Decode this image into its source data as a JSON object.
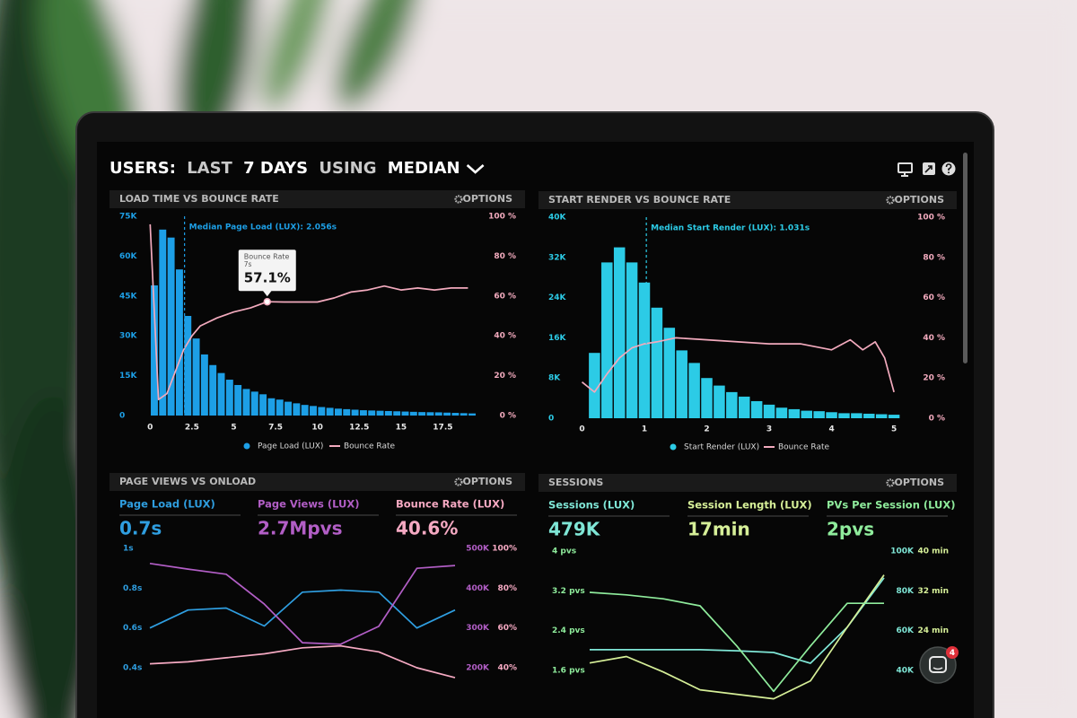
{
  "header": {
    "title": [
      "USERS:",
      "LAST",
      "7 DAYS",
      "USING",
      "MEDIAN"
    ]
  },
  "chat_badge": 4,
  "chart_data": [
    {
      "type": "histogram",
      "title": "LOAD TIME VS BOUNCE RATE",
      "options": "OPTIONS",
      "legend": "bottom",
      "xlim": [
        -0.5,
        20
      ],
      "xticks": [
        0,
        2.5,
        5,
        7.5,
        10,
        12.5,
        15,
        17.5
      ],
      "ylim": [
        0,
        75000
      ],
      "yticks": [
        {
          "value": 75000,
          "label": "75K"
        },
        {
          "value": 60000,
          "label": "60K"
        },
        {
          "value": 45000,
          "label": "45K"
        },
        {
          "value": 30000,
          "label": "30K"
        },
        {
          "value": 15000,
          "label": "15K"
        },
        0
      ],
      "y2lim": [
        0,
        100
      ],
      "y2ticks": [
        {
          "value": 100,
          "label": "100 %"
        },
        {
          "value": 80,
          "label": "80 %"
        },
        {
          "value": 60,
          "label": "60 %"
        },
        {
          "value": 40,
          "label": "40 %"
        },
        {
          "value": 20,
          "label": "20 %"
        },
        {
          "value": 0,
          "label": "0 %"
        }
      ],
      "series": [
        {
          "name": "Page Load (LUX)",
          "color": "#1d9fe6",
          "bins": [
            0,
            0.5,
            1,
            1.5,
            2,
            2.5,
            3,
            3.5,
            4,
            4.5,
            5,
            5.5,
            6,
            6.5,
            7,
            7.5,
            8,
            8.5,
            9,
            9.5,
            10,
            10.5,
            11,
            11.5,
            12,
            12.5,
            13,
            13.5,
            14,
            14.5,
            15,
            15.5,
            16,
            16.5,
            17,
            17.5,
            18,
            18.5,
            19,
            19.5
          ],
          "values": [
            49000,
            70000,
            67000,
            55000,
            37500,
            29000,
            23000,
            19000,
            16000,
            13500,
            11500,
            10000,
            9000,
            8000,
            6500,
            6000,
            5200,
            4600,
            4000,
            3600,
            3200,
            2900,
            2600,
            2400,
            2200,
            2000,
            1900,
            1800,
            1700,
            1600,
            1500,
            1400,
            1300,
            1250,
            1200,
            1100,
            1000,
            900,
            800
          ]
        },
        {
          "name": "Bounce Rate",
          "color": "#f2aabd",
          "axis": "y2",
          "x": [
            0,
            0.5,
            1,
            1.5,
            2,
            2.5,
            3,
            4,
            5,
            6,
            7,
            8,
            9,
            10,
            11,
            12,
            13,
            14,
            15,
            16,
            17,
            18,
            19
          ],
          "values": [
            96,
            8,
            11,
            22,
            33,
            40,
            45,
            49,
            52,
            54,
            57.1,
            57,
            57,
            57,
            59,
            62,
            63,
            65,
            63,
            64,
            63,
            64,
            64
          ]
        }
      ],
      "annotations": [
        {
          "x": 2.056,
          "text": "Median Page Load (LUX): 2.056s"
        }
      ],
      "tooltip": {
        "title": "Bounce Rate",
        "x": 7,
        "x_label": "7s",
        "value": 57.1,
        "label": "57.1%"
      }
    },
    {
      "type": "histogram",
      "title": "START RENDER VS BOUNCE RATE",
      "options": "OPTIONS",
      "legend": "bottom",
      "xlim": [
        -0.05,
        5.2
      ],
      "xticks": [
        0,
        1,
        2,
        3,
        4,
        5
      ],
      "ylim": [
        0,
        40000
      ],
      "yticks": [
        {
          "value": 40000,
          "label": "40K"
        },
        {
          "value": 32000,
          "label": "32K"
        },
        {
          "value": 24000,
          "label": "24K"
        },
        {
          "value": 16000,
          "label": "16K"
        },
        {
          "value": 8000,
          "label": "8K"
        },
        0
      ],
      "y2lim": [
        0,
        100
      ],
      "y2ticks": [
        {
          "value": 100,
          "label": "100 %"
        },
        {
          "value": 80,
          "label": "80 %"
        },
        {
          "value": 60,
          "label": "60 %"
        },
        {
          "value": 40,
          "label": "40 %"
        },
        {
          "value": 20,
          "label": "20 %"
        },
        {
          "value": 0,
          "label": "0 %"
        }
      ],
      "series": [
        {
          "name": "Start Render (LUX)",
          "color": "#2ccbe6",
          "bins": [
            0.1,
            0.3,
            0.5,
            0.7,
            0.9,
            1.1,
            1.3,
            1.5,
            1.7,
            1.9,
            2.1,
            2.3,
            2.5,
            2.7,
            2.9,
            3.1,
            3.3,
            3.5,
            3.7,
            3.9,
            4.1,
            4.3,
            4.5,
            4.7,
            4.9,
            5.1
          ],
          "values": [
            13000,
            31000,
            34000,
            31000,
            27000,
            22000,
            18000,
            13500,
            11000,
            8000,
            6500,
            5200,
            4300,
            3400,
            2700,
            2100,
            1800,
            1500,
            1400,
            1200,
            1000,
            1000,
            900,
            800,
            700
          ]
        },
        {
          "name": "Bounce Rate",
          "color": "#f2aabd",
          "axis": "y2",
          "x": [
            0,
            0.2,
            0.4,
            0.6,
            0.8,
            1,
            1.2,
            1.5,
            2,
            2.5,
            3,
            3.5,
            4,
            4.3,
            4.5,
            4.7,
            4.85,
            5
          ],
          "values": [
            18,
            13,
            22,
            30,
            35,
            37,
            38,
            40,
            39,
            38,
            37,
            37,
            34,
            39,
            34,
            38,
            30,
            13
          ]
        }
      ],
      "annotations": [
        {
          "x": 1.031,
          "text": "Median Start Render (LUX): 1.031s"
        }
      ]
    },
    {
      "type": "line",
      "title": "PAGE VIEWS VS ONLOAD",
      "options": "OPTIONS",
      "categories": [
        null,
        null,
        null,
        null,
        null,
        null,
        null,
        null,
        null
      ],
      "ylim": [
        0.4,
        1
      ],
      "yticks": [
        {
          "value": 1,
          "label": "1s"
        },
        {
          "value": 0.8,
          "label": "0.8s"
        },
        {
          "value": 0.6,
          "label": "0.6s"
        },
        {
          "value": 0.4,
          "label": "0.4s"
        }
      ],
      "y2lim": [
        200000,
        500000
      ],
      "y2ticks": [
        {
          "value": 500000,
          "label": "500K"
        },
        {
          "value": 400000,
          "label": "400K"
        },
        {
          "value": 300000,
          "label": "300K"
        },
        {
          "value": 200000,
          "label": "200K"
        }
      ],
      "y3lim": [
        40,
        100
      ],
      "y3ticks": [
        {
          "value": 100,
          "label": "100%"
        },
        {
          "value": 80,
          "label": "80%"
        },
        {
          "value": 60,
          "label": "60%"
        },
        {
          "value": 40,
          "label": "40%"
        }
      ],
      "series": [
        {
          "name": "Page Load (LUX)",
          "summary": "0.7s",
          "color": "#2f9ee0",
          "values": [
            0.6,
            0.69,
            0.7,
            0.61,
            0.78,
            0.79,
            0.78,
            0.6,
            0.69
          ]
        },
        {
          "name": "Page Views (LUX)",
          "summary": "2.7Mpvs",
          "color": "#b25ec6",
          "axis": "y2",
          "values": [
            462000,
            448000,
            435000,
            360000,
            263000,
            259000,
            304000,
            450000,
            457000
          ]
        },
        {
          "name": "Bounce Rate (LUX)",
          "summary": "40.6%",
          "color": "#f5a9c2",
          "axis": "y3",
          "values": [
            42,
            43,
            45,
            47,
            50,
            51,
            48,
            40,
            35
          ]
        }
      ]
    },
    {
      "type": "line",
      "title": "SESSIONS",
      "options": "OPTIONS",
      "categories": [
        null,
        null,
        null,
        null,
        null,
        null,
        null,
        null,
        null
      ],
      "ylim": [
        1.6,
        4
      ],
      "yticks": [
        {
          "value": 4,
          "label": "4 pvs"
        },
        {
          "value": 3.2,
          "label": "3.2 pvs"
        },
        {
          "value": 2.4,
          "label": "2.4 pvs"
        },
        {
          "value": 1.6,
          "label": "1.6 pvs"
        }
      ],
      "y2lim": [
        40000,
        100000
      ],
      "y2ticks": [
        {
          "value": 100000,
          "label": "100K"
        },
        {
          "value": 80000,
          "label": "80K"
        },
        {
          "value": 60000,
          "label": "60K"
        },
        {
          "value": 40000,
          "label": "40K"
        }
      ],
      "y3lim": [
        16,
        40
      ],
      "y3ticks": [
        {
          "value": 40,
          "label": "40 min"
        },
        {
          "value": 32,
          "label": "32 min"
        },
        {
          "value": 24,
          "label": "24 min"
        }
      ],
      "series": [
        {
          "name": "Sessions (LUX)",
          "summary": "479K",
          "color": "#7fe6d6",
          "axis": "y2",
          "values": [
            50400,
            50400,
            50400,
            50400,
            49900,
            49000,
            43600,
            61700,
            86500
          ]
        },
        {
          "name": "Session Length (LUX)",
          "summary": "17min",
          "color": "#d6ef98",
          "axis": "y3",
          "values": [
            17.5,
            18.8,
            15.7,
            12.1,
            11.2,
            10.3,
            13.9,
            24.7,
            35.2
          ]
        },
        {
          "name": "PVs Per Session (LUX)",
          "summary": "2pvs",
          "color": "#8fec9c",
          "values": [
            3.17,
            3.12,
            3.04,
            2.9,
            2.09,
            1.18,
            2.09,
            2.95,
            2.95
          ]
        }
      ]
    }
  ]
}
